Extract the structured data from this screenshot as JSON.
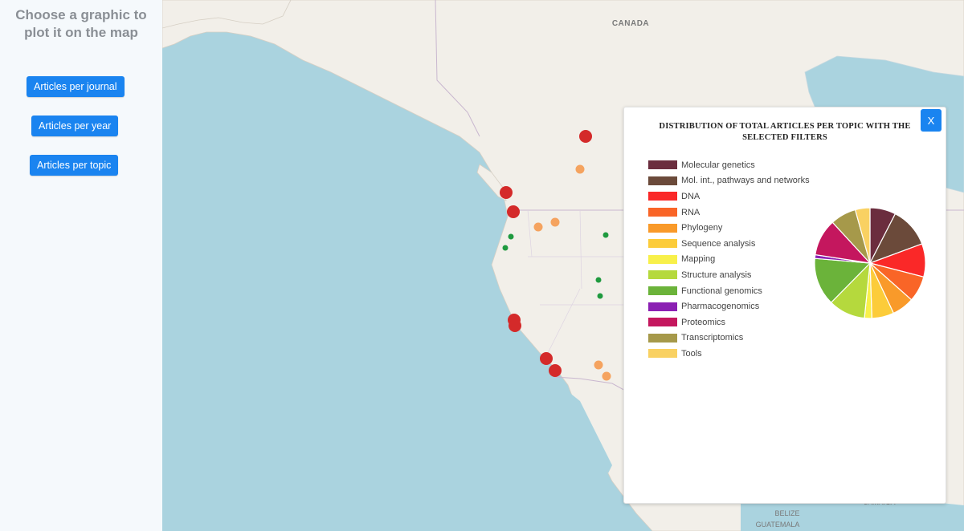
{
  "sidebar": {
    "title": "Choose a graphic to plot it on the map",
    "buttons": [
      {
        "label": "Articles per journal"
      },
      {
        "label": "Articles per year"
      },
      {
        "label": "Articles per topic"
      }
    ]
  },
  "map": {
    "labels": {
      "canada": "CANADA",
      "belize": "BELIZE",
      "guatemala": "GUATEMALA",
      "jamaica": "JAMAICA"
    },
    "marker_colors": {
      "large": "#d42a2a",
      "medium": "#f5a35f",
      "small": "#1f9a3f"
    }
  },
  "panel": {
    "close_label": "X",
    "title": "DISTRIBUTION OF TOTAL ARTICLES PER TOPIC WITH THE SELECTED FILTERS"
  },
  "chart_data": {
    "type": "pie",
    "title": "DISTRIBUTION OF TOTAL ARTICLES PER TOPIC WITH THE SELECTED FILTERS",
    "legend_position": "left",
    "slices": [
      {
        "name": "Molecular genetics",
        "value": 7.0,
        "color": "#6b2d3e"
      },
      {
        "name": "Mol. int., pathways and networks",
        "value": 11.0,
        "color": "#6b4a3a"
      },
      {
        "name": "DNA",
        "value": 9.0,
        "color": "#fa2828"
      },
      {
        "name": "RNA",
        "value": 7.0,
        "color": "#f96527"
      },
      {
        "name": "Phylogeny",
        "value": 6.0,
        "color": "#f99a2a"
      },
      {
        "name": "Sequence analysis",
        "value": 6.0,
        "color": "#fccc3a"
      },
      {
        "name": "Mapping",
        "value": 2.0,
        "color": "#f8f04a"
      },
      {
        "name": "Structure analysis",
        "value": 10.0,
        "color": "#b5d93d"
      },
      {
        "name": "Functional genomics",
        "value": 13.0,
        "color": "#6bb33a"
      },
      {
        "name": "Pharmacogenomics",
        "value": 1.0,
        "color": "#8b20b3"
      },
      {
        "name": "Proteomics",
        "value": 10.0,
        "color": "#c4175e"
      },
      {
        "name": "Transcriptomics",
        "value": 7.0,
        "color": "#a6994a"
      },
      {
        "name": "Tools",
        "value": 4.0,
        "color": "#f9d162"
      }
    ]
  }
}
